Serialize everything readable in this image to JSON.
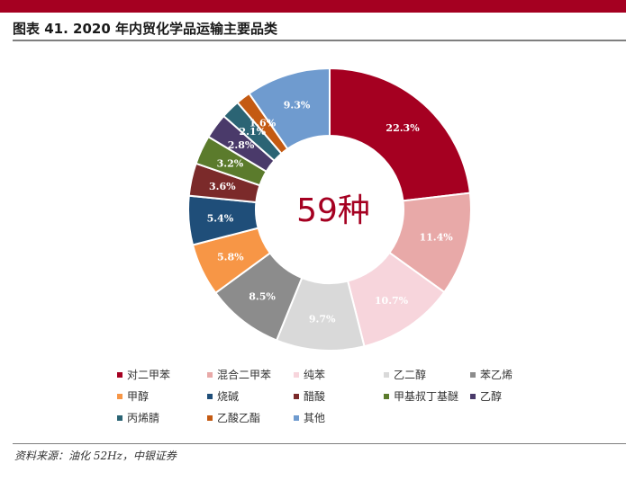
{
  "header": {
    "title": "图表 41. 2020 年内贸化学品运输主要品类"
  },
  "chart_data": {
    "type": "pie",
    "style": "donut",
    "center_label": "59种",
    "slices": [
      {
        "name": "对二甲苯",
        "value": 22.3,
        "label": "22.3%",
        "color": "#a50021"
      },
      {
        "name": "混合二甲苯",
        "value": 11.4,
        "label": "11.4%",
        "color": "#e8a9a8"
      },
      {
        "name": "纯苯",
        "value": 10.7,
        "label": "10.7%",
        "color": "#f7d5dc"
      },
      {
        "name": "乙二醇",
        "value": 9.7,
        "label": "9.7%",
        "color": "#d9d9d9"
      },
      {
        "name": "苯乙烯",
        "value": 8.5,
        "label": "8.5%",
        "color": "#8c8c8c"
      },
      {
        "name": "甲醇",
        "value": 5.8,
        "label": "5.8%",
        "color": "#f79646"
      },
      {
        "name": "烧碱",
        "value": 5.4,
        "label": "5.4%",
        "color": "#1f4e79"
      },
      {
        "name": "醋酸",
        "value": 3.6,
        "label": "3.6%",
        "color": "#7b2a2a"
      },
      {
        "name": "甲基叔丁基醚",
        "value": 3.2,
        "label": "3.2%",
        "color": "#5b7b2c"
      },
      {
        "name": "乙醇",
        "value": 2.8,
        "label": "2.8%",
        "color": "#4a3a6a"
      },
      {
        "name": "丙烯腈",
        "value": 2.1,
        "label": "2.1%",
        "color": "#2b6474"
      },
      {
        "name": "乙酸乙酯",
        "value": 1.6,
        "label": "1.6%",
        "color": "#c45a12"
      },
      {
        "name": "其他",
        "value": 9.3,
        "label": "9.3%",
        "color": "#6f9bcf"
      }
    ],
    "legend_position": "bottom"
  },
  "footer": {
    "source": "资料来源：油化 52Hz，中银证券"
  }
}
